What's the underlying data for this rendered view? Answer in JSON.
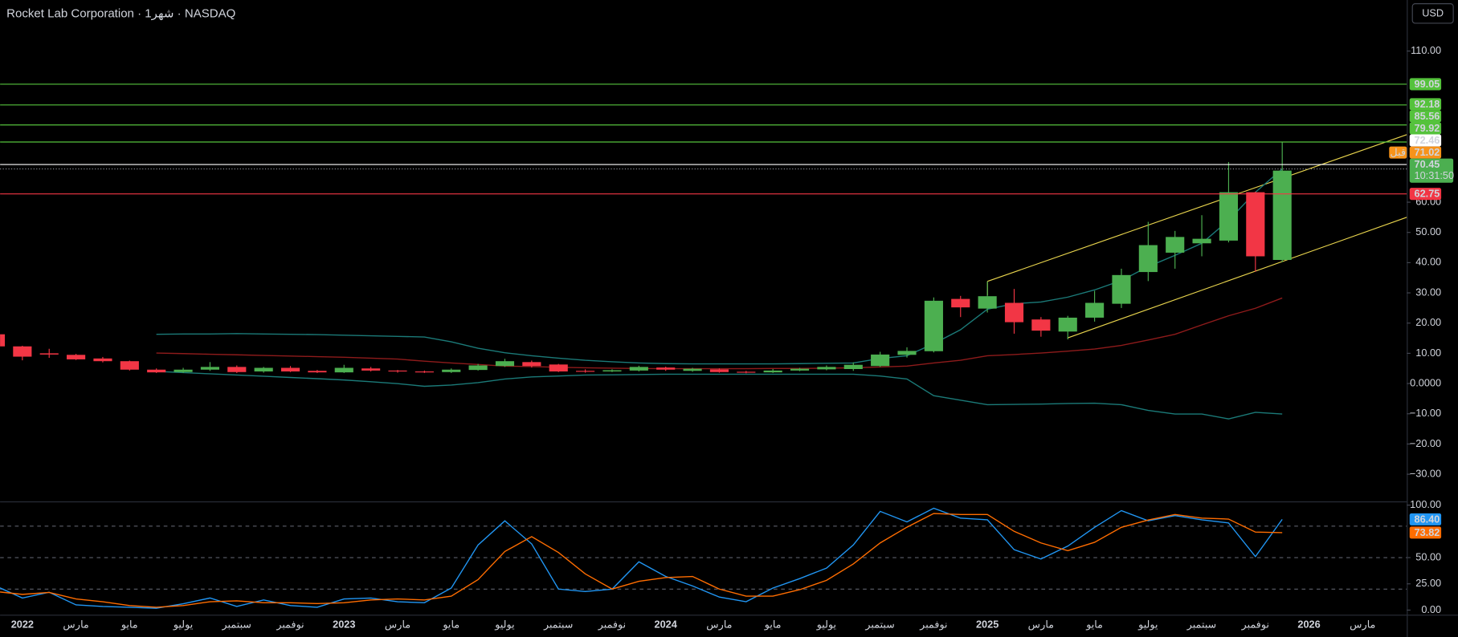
{
  "title": "Rocket Lab Corporation · 1شهر · NASDAQ",
  "currency": "USD",
  "chart_data": [
    {
      "type": "candlestick",
      "categories": [
        null,
        "2022",
        null,
        "مارس",
        null,
        "مايو",
        null,
        "يوليو",
        null,
        "سبتمبر",
        null,
        "نوفمبر",
        null,
        "2023",
        null,
        "مارس",
        null,
        "مايو",
        null,
        "يوليو",
        null,
        "سبتمبر",
        null,
        "نوفمبر",
        null,
        "2024",
        null,
        "مارس",
        null,
        "مايو",
        null,
        "يوليو",
        null,
        "سبتمبر",
        null,
        "نوفمبر",
        null,
        "2025",
        null,
        "مارس",
        null,
        "مايو",
        null,
        "يوليو",
        null,
        "سبتمبر",
        null,
        "نوفمبر",
        null,
        "2026",
        null,
        "مارس"
      ],
      "open": [
        16.3,
        12.3,
        10,
        9.5,
        8.3,
        7.4,
        4.6,
        3.8,
        4.6,
        5.5,
        4,
        5.2,
        4.2,
        3.7,
        5,
        4.3,
        4,
        3.8,
        4.5,
        5.8,
        7.1,
        6.3,
        4.2,
        4,
        4.3,
        5.3,
        4.2,
        4.7,
        3.9,
        3.7,
        4.3,
        4.7,
        4.8,
        5.8,
        9.5,
        10.7,
        28,
        24.8,
        26.7,
        21.2,
        17.2,
        21.8,
        26.4,
        36.9,
        43.3,
        46.4,
        47.3,
        63.3,
        40.9,
        null,
        null,
        null
      ],
      "high": [
        16.5,
        12.5,
        11.5,
        9.8,
        8.8,
        7.6,
        5,
        5.2,
        7.1,
        6,
        5.5,
        5.8,
        4.5,
        6.2,
        5.5,
        4.5,
        4.3,
        5,
        6.5,
        8.2,
        7.6,
        6.5,
        4.7,
        4.7,
        5.9,
        5.6,
        5.2,
        5,
        4.2,
        4.8,
        5.2,
        6,
        7,
        10.5,
        12,
        28.5,
        29,
        33.8,
        31.3,
        22,
        22.4,
        30.7,
        38,
        53.5,
        50.5,
        55.7,
        73.3,
        63.5,
        80,
        null,
        null,
        null
      ],
      "low": [
        12,
        7.7,
        8.5,
        7.8,
        7,
        4.3,
        3.5,
        3.5,
        4.2,
        3.5,
        3.6,
        3.8,
        3.5,
        3.5,
        4,
        3.6,
        3.5,
        3.5,
        4.3,
        5.5,
        5.3,
        3.8,
        3.6,
        3.8,
        4,
        4.2,
        3.9,
        3.6,
        3.4,
        3.5,
        4.1,
        4.4,
        4.2,
        5.5,
        8.6,
        10.3,
        22,
        23.5,
        16.5,
        15.5,
        14.6,
        20.5,
        25,
        33.9,
        38,
        42.1,
        46.7,
        37,
        40.2,
        null,
        null,
        null
      ],
      "close": [
        12.3,
        8.9,
        9.6,
        8,
        7.4,
        4.6,
        3.7,
        4.6,
        5.5,
        3.8,
        5.2,
        4,
        3.7,
        5.2,
        4.3,
        4,
        3.8,
        4.6,
        6,
        7.4,
        5.8,
        4,
        4,
        4.4,
        5.5,
        4.6,
        4.9,
        3.8,
        3.7,
        4.3,
        4.9,
        5.5,
        6.2,
        9.6,
        10.8,
        27.4,
        25.2,
        28.9,
        20.3,
        17.5,
        21.8,
        26.7,
        35.9,
        45.8,
        48.5,
        47.9,
        63.3,
        42.1,
        70.45,
        null,
        null,
        null
      ],
      "up_color": "#4caf50",
      "down_color": "#f23645",
      "ylim": [
        -39,
        126.9
      ],
      "yticks": [
        {
          "value": 110,
          "label": "110.00"
        },
        {
          "value": 60,
          "label": "60.00"
        },
        {
          "value": 50,
          "label": "50.00"
        },
        {
          "value": 40,
          "label": "40.00"
        },
        {
          "value": 30,
          "label": "30.00"
        },
        {
          "value": 20,
          "label": "20.00"
        },
        {
          "value": 10,
          "label": "10.00"
        },
        {
          "value": 0,
          "label": "0.0000"
        },
        {
          "value": -10,
          "label": "−10.00"
        },
        {
          "value": -20,
          "label": "−20.00"
        },
        {
          "value": -30,
          "label": "−30.00"
        }
      ],
      "series": [
        {
          "color": "#1b7a78",
          "values": [
            null,
            null,
            null,
            null,
            null,
            null,
            16.3,
            16.4,
            16.4,
            16.5,
            16.4,
            16.3,
            16.2,
            16,
            15.8,
            15.6,
            15.4,
            13.8,
            11.7,
            10.2,
            9.2,
            8.4,
            7.7,
            7.2,
            6.8,
            6.6,
            6.5,
            6.5,
            6.5,
            6.5,
            6.6,
            6.7,
            6.8,
            8.3,
            9.2,
            13.2,
            17.8,
            24.6,
            26.4,
            27,
            28.6,
            31,
            34.1,
            38.7,
            42.4,
            46.4,
            54,
            63.3,
            71,
            null,
            null,
            null
          ]
        },
        {
          "color": "#8e1b1b",
          "values": [
            null,
            null,
            null,
            null,
            null,
            null,
            10.1,
            9.9,
            9.7,
            9.5,
            9.3,
            9.1,
            8.9,
            8.7,
            8.4,
            8.1,
            7.4,
            6.8,
            6.3,
            5.8,
            5.6,
            5.4,
            5.2,
            5.1,
            5.0,
            4.9,
            4.9,
            4.9,
            4.9,
            5.0,
            5.0,
            5.1,
            5.2,
            5.5,
            5.8,
            6.8,
            7.7,
            9.2,
            9.6,
            10.1,
            10.7,
            11.4,
            12.6,
            14.4,
            16.3,
            19.4,
            22.4,
            24.9,
            28.3,
            null,
            null,
            null
          ]
        },
        {
          "color": "#1b7a78",
          "values": [
            null,
            null,
            null,
            null,
            null,
            null,
            4,
            3.6,
            3.2,
            2.8,
            2.4,
            2.0,
            1.6,
            1.2,
            0.6,
            0,
            -0.9,
            -0.5,
            0.3,
            1.5,
            2.2,
            2.5,
            2.8,
            2.9,
            3.0,
            3.1,
            3.1,
            3.1,
            3.1,
            3.1,
            3.1,
            3.1,
            3.1,
            2.5,
            1.5,
            -4,
            -5.5,
            -7,
            -6.9,
            -6.8,
            -6.6,
            -6.5,
            -7,
            -8.9,
            -10.1,
            -10.1,
            -11.7,
            -9.5,
            -10.1,
            null,
            null,
            null
          ]
        }
      ],
      "levels": [
        {
          "value": 99.05,
          "color": "#55c23c",
          "text_color": "#000000"
        },
        {
          "value": 92.18,
          "color": "#55c23c",
          "text_color": "#000000"
        },
        {
          "value": 85.56,
          "color": "#55c23c",
          "text_color": "#000000"
        },
        {
          "value": 79.92,
          "color": "#55c23c",
          "text_color": "#000000"
        },
        {
          "value": 72.46,
          "color": "#ffffff",
          "text_color": "#000000"
        },
        {
          "value": 62.75,
          "color": "#f23645",
          "text_color": "#ffffff"
        }
      ],
      "premarket": {
        "label": "قبل",
        "value": 71.02,
        "color": "#f7931a"
      },
      "last": {
        "value": 70.45,
        "countdown": "10:31:50",
        "color": "#4caf50"
      }
    },
    {
      "type": "line",
      "ylim": [
        -4.4,
        103.5
      ],
      "yticks": [
        {
          "value": 100,
          "label": "100.00"
        },
        {
          "value": 50,
          "label": "50.00"
        },
        {
          "value": 25,
          "label": "25.00"
        },
        {
          "value": 0,
          "label": "0.00"
        }
      ],
      "bands": [
        80,
        50,
        20
      ],
      "series": [
        {
          "color": "#2196f3",
          "last_label": "86.40",
          "values": [
            23,
            11.5,
            17,
            5,
            3.5,
            2.7,
            1.8,
            6,
            11.5,
            3.5,
            9.7,
            4.4,
            2.7,
            10.6,
            11.5,
            8,
            7,
            21,
            62,
            85,
            63,
            20,
            17.7,
            20,
            46,
            32,
            23,
            12.4,
            8,
            21,
            30,
            40,
            62,
            94,
            84,
            97,
            87.6,
            86,
            57.5,
            48.7,
            61,
            78.8,
            94.7,
            85,
            90,
            86,
            83,
            51,
            86.4,
            null,
            null,
            null
          ]
        },
        {
          "color": "#ff6d00",
          "last_label": "73.82",
          "values": [
            17.7,
            15,
            16.8,
            10.6,
            8,
            4.4,
            2.7,
            4.4,
            8,
            8.8,
            7,
            7,
            6.2,
            7,
            9.7,
            10.6,
            9.7,
            13.3,
            29,
            55.8,
            70,
            54.9,
            34.5,
            20,
            27.4,
            31,
            32,
            20,
            13.3,
            13.3,
            19.5,
            28.3,
            44,
            64,
            79,
            92,
            91,
            91,
            75,
            64,
            56.6,
            64.6,
            78.8,
            85.8,
            91,
            87.6,
            86.7,
            74.3,
            73.82,
            null,
            null,
            null
          ]
        }
      ]
    }
  ]
}
